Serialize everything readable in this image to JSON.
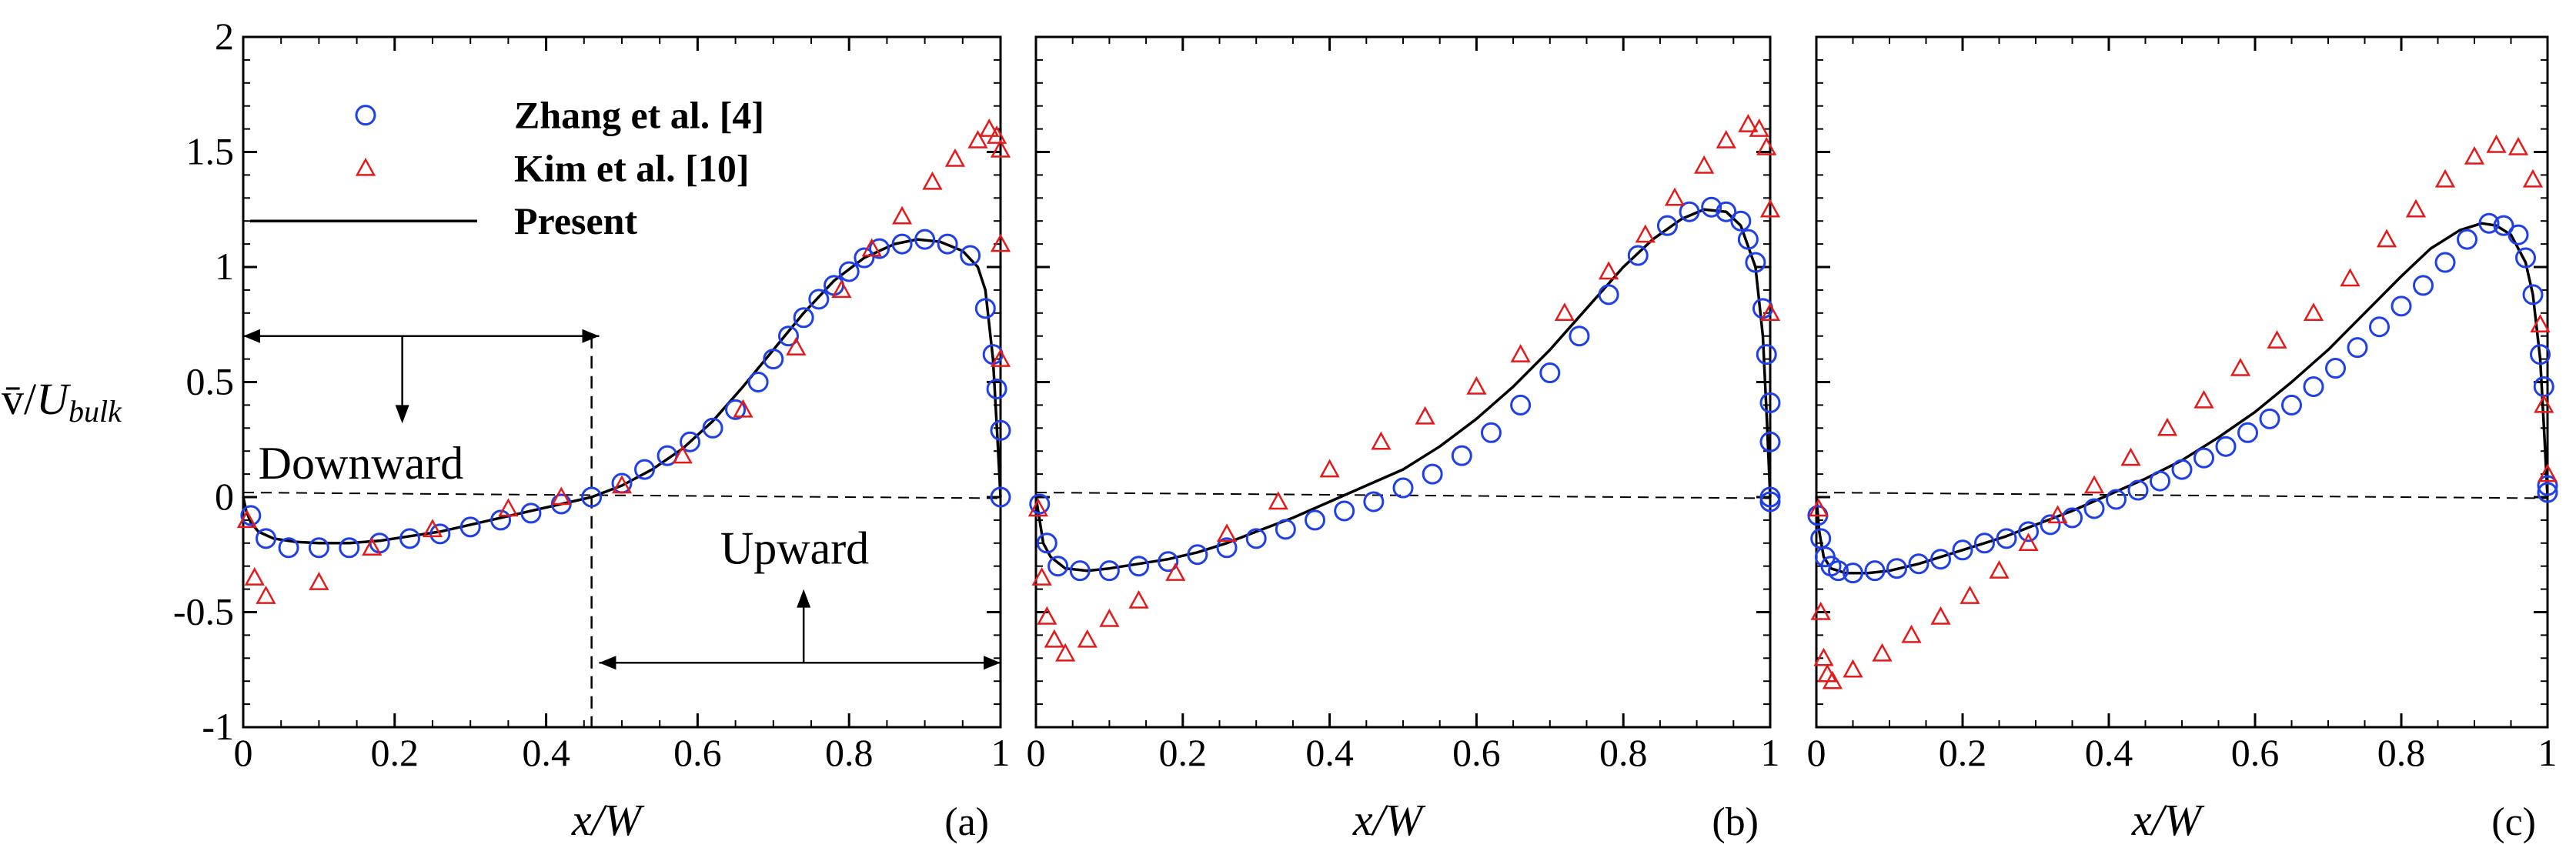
{
  "chart_data": {
    "type": "line",
    "layout": "three panels side by side, shared y-axis on the left panel",
    "y_axis": {
      "label_prefix": "v̄/",
      "label_main": "U",
      "label_sub": "bulk",
      "range": [
        -1,
        2
      ],
      "ticks": [
        "-1",
        "-0.5",
        "0",
        "0.5",
        "1",
        "1.5",
        "2"
      ]
    },
    "x_axis": {
      "label": "x/W",
      "range": [
        0,
        1
      ],
      "ticks": [
        "0",
        "0.2",
        "0.4",
        "0.6",
        "0.8",
        "1"
      ]
    },
    "legend": {
      "placement": "top-left of panel (a)",
      "entries": [
        {
          "name": "Zhang et al. [4]",
          "marker": "circle",
          "color": "#1f3fe8"
        },
        {
          "name": "Kim et al. [10]",
          "marker": "triangle",
          "color": "#e41a1a"
        },
        {
          "name": "Present",
          "marker": "line",
          "color": "#000000"
        }
      ]
    },
    "panels": [
      {
        "label": "(a)",
        "annotations": {
          "downward": "Downward",
          "upward": "Upward",
          "divider_x": 0.46,
          "downward_span": [
            0.0,
            0.47
          ],
          "upward_span": [
            0.47,
            1.0
          ]
        },
        "series": [
          {
            "name": "Present",
            "x": [
              0,
              0.004,
              0.01,
              0.02,
              0.04,
              0.07,
              0.1,
              0.14,
              0.18,
              0.22,
              0.26,
              0.3,
              0.34,
              0.38,
              0.42,
              0.46,
              0.5,
              0.54,
              0.58,
              0.62,
              0.66,
              0.7,
              0.74,
              0.78,
              0.82,
              0.86,
              0.89,
              0.92,
              0.95,
              0.97,
              0.98,
              0.99,
              0.996,
              1.0
            ],
            "y": [
              0,
              -0.06,
              -0.11,
              -0.15,
              -0.18,
              -0.195,
              -0.2,
              -0.2,
              -0.19,
              -0.17,
              -0.15,
              -0.12,
              -0.09,
              -0.06,
              -0.03,
              0.0,
              0.05,
              0.12,
              0.21,
              0.33,
              0.48,
              0.64,
              0.8,
              0.94,
              1.04,
              1.1,
              1.12,
              1.11,
              1.07,
              1.0,
              0.9,
              0.6,
              0.25,
              0.0
            ]
          },
          {
            "name": "Zhang et al. [4]",
            "x": [
              0.01,
              0.03,
              0.06,
              0.1,
              0.14,
              0.18,
              0.22,
              0.26,
              0.3,
              0.34,
              0.38,
              0.42,
              0.46,
              0.5,
              0.53,
              0.56,
              0.59,
              0.62,
              0.65,
              0.68,
              0.7,
              0.72,
              0.74,
              0.76,
              0.78,
              0.8,
              0.82,
              0.84,
              0.87,
              0.9,
              0.93,
              0.96,
              0.98,
              0.99,
              0.995,
              1.0,
              1.0
            ],
            "y": [
              -0.08,
              -0.18,
              -0.22,
              -0.22,
              -0.22,
              -0.2,
              -0.18,
              -0.16,
              -0.13,
              -0.1,
              -0.07,
              -0.03,
              0.0,
              0.06,
              0.12,
              0.18,
              0.24,
              0.3,
              0.38,
              0.5,
              0.6,
              0.7,
              0.78,
              0.86,
              0.92,
              0.98,
              1.04,
              1.08,
              1.1,
              1.12,
              1.1,
              1.05,
              0.82,
              0.62,
              0.47,
              0.29,
              0.0
            ]
          },
          {
            "name": "Kim et al. [10]",
            "x": [
              0.005,
              0.015,
              0.03,
              0.1,
              0.17,
              0.25,
              0.35,
              0.42,
              0.5,
              0.58,
              0.66,
              0.73,
              0.79,
              0.83,
              0.87,
              0.91,
              0.94,
              0.97,
              0.985,
              0.995,
              1.0,
              1.0,
              1.0
            ],
            "y": [
              -0.1,
              -0.35,
              -0.43,
              -0.37,
              -0.22,
              -0.14,
              -0.05,
              0.0,
              0.05,
              0.18,
              0.38,
              0.65,
              0.9,
              1.08,
              1.22,
              1.37,
              1.47,
              1.55,
              1.6,
              1.57,
              1.51,
              1.1,
              0.6
            ]
          }
        ]
      },
      {
        "label": "(b)",
        "series": [
          {
            "name": "Present",
            "x": [
              0,
              0.005,
              0.01,
              0.02,
              0.04,
              0.07,
              0.1,
              0.14,
              0.18,
              0.22,
              0.26,
              0.3,
              0.35,
              0.4,
              0.45,
              0.5,
              0.55,
              0.6,
              0.65,
              0.7,
              0.75,
              0.8,
              0.84,
              0.88,
              0.91,
              0.94,
              0.96,
              0.98,
              0.99,
              0.996,
              1.0
            ],
            "y": [
              0,
              -0.1,
              -0.2,
              -0.26,
              -0.31,
              -0.32,
              -0.31,
              -0.29,
              -0.27,
              -0.24,
              -0.2,
              -0.15,
              -0.09,
              -0.02,
              0.05,
              0.12,
              0.22,
              0.34,
              0.48,
              0.64,
              0.82,
              1.0,
              1.12,
              1.21,
              1.25,
              1.24,
              1.18,
              1.0,
              0.7,
              0.3,
              0.0
            ]
          },
          {
            "name": "Zhang et al. [4]",
            "x": [
              0.005,
              0.015,
              0.03,
              0.06,
              0.1,
              0.14,
              0.18,
              0.22,
              0.26,
              0.3,
              0.34,
              0.38,
              0.42,
              0.46,
              0.5,
              0.54,
              0.58,
              0.62,
              0.66,
              0.7,
              0.74,
              0.78,
              0.82,
              0.86,
              0.89,
              0.92,
              0.94,
              0.96,
              0.97,
              0.98,
              0.99,
              0.995,
              1.0,
              1.0,
              1.0,
              1.0
            ],
            "y": [
              -0.03,
              -0.2,
              -0.3,
              -0.32,
              -0.32,
              -0.3,
              -0.28,
              -0.25,
              -0.22,
              -0.18,
              -0.14,
              -0.1,
              -0.06,
              -0.02,
              0.04,
              0.1,
              0.18,
              0.28,
              0.4,
              0.54,
              0.7,
              0.88,
              1.05,
              1.18,
              1.24,
              1.26,
              1.24,
              1.2,
              1.12,
              1.02,
              0.82,
              0.62,
              0.41,
              0.24,
              0.0,
              -0.02
            ]
          },
          {
            "name": "Kim et al. [10]",
            "x": [
              0.003,
              0.008,
              0.015,
              0.025,
              0.04,
              0.07,
              0.1,
              0.14,
              0.19,
              0.26,
              0.33,
              0.4,
              0.47,
              0.53,
              0.6,
              0.66,
              0.72,
              0.78,
              0.83,
              0.87,
              0.91,
              0.94,
              0.97,
              0.985,
              0.995,
              1.0,
              1.0
            ],
            "y": [
              -0.05,
              -0.35,
              -0.52,
              -0.62,
              -0.68,
              -0.62,
              -0.53,
              -0.45,
              -0.33,
              -0.16,
              -0.02,
              0.12,
              0.24,
              0.35,
              0.48,
              0.62,
              0.8,
              0.98,
              1.14,
              1.3,
              1.44,
              1.55,
              1.62,
              1.6,
              1.52,
              1.25,
              0.8
            ]
          }
        ]
      },
      {
        "label": "(c)",
        "series": [
          {
            "name": "Present",
            "x": [
              0,
              0.004,
              0.01,
              0.02,
              0.04,
              0.07,
              0.1,
              0.14,
              0.18,
              0.22,
              0.26,
              0.3,
              0.35,
              0.4,
              0.45,
              0.5,
              0.55,
              0.6,
              0.65,
              0.7,
              0.75,
              0.8,
              0.84,
              0.88,
              0.91,
              0.93,
              0.95,
              0.97,
              0.98,
              0.99,
              0.996,
              1.0
            ],
            "y": [
              0,
              -0.15,
              -0.26,
              -0.31,
              -0.33,
              -0.33,
              -0.32,
              -0.29,
              -0.25,
              -0.21,
              -0.17,
              -0.12,
              -0.06,
              0.01,
              0.08,
              0.16,
              0.26,
              0.37,
              0.5,
              0.64,
              0.8,
              0.96,
              1.08,
              1.16,
              1.19,
              1.18,
              1.14,
              1.02,
              0.88,
              0.6,
              0.25,
              0.0
            ]
          },
          {
            "name": "Zhang et al. [4]",
            "x": [
              0.002,
              0.006,
              0.012,
              0.02,
              0.03,
              0.05,
              0.08,
              0.11,
              0.14,
              0.17,
              0.2,
              0.23,
              0.26,
              0.29,
              0.32,
              0.35,
              0.38,
              0.41,
              0.44,
              0.47,
              0.5,
              0.53,
              0.56,
              0.59,
              0.62,
              0.65,
              0.68,
              0.71,
              0.74,
              0.77,
              0.8,
              0.83,
              0.86,
              0.89,
              0.92,
              0.94,
              0.96,
              0.97,
              0.98,
              0.99,
              0.995,
              1.0,
              1.0
            ],
            "y": [
              -0.08,
              -0.18,
              -0.26,
              -0.3,
              -0.32,
              -0.33,
              -0.32,
              -0.31,
              -0.29,
              -0.27,
              -0.23,
              -0.2,
              -0.18,
              -0.15,
              -0.12,
              -0.09,
              -0.05,
              -0.01,
              0.03,
              0.07,
              0.12,
              0.17,
              0.22,
              0.28,
              0.34,
              0.4,
              0.48,
              0.56,
              0.65,
              0.74,
              0.83,
              0.92,
              1.02,
              1.12,
              1.19,
              1.18,
              1.14,
              1.04,
              0.88,
              0.62,
              0.48,
              0.02,
              0.05
            ]
          },
          {
            "name": "Kim et al. [10]",
            "x": [
              0.003,
              0.006,
              0.01,
              0.015,
              0.022,
              0.05,
              0.09,
              0.13,
              0.17,
              0.21,
              0.25,
              0.29,
              0.33,
              0.38,
              0.43,
              0.48,
              0.53,
              0.58,
              0.63,
              0.68,
              0.73,
              0.78,
              0.82,
              0.86,
              0.9,
              0.93,
              0.96,
              0.98,
              0.99,
              0.995,
              1.0
            ],
            "y": [
              -0.05,
              -0.5,
              -0.7,
              -0.77,
              -0.8,
              -0.75,
              -0.68,
              -0.6,
              -0.52,
              -0.43,
              -0.32,
              -0.2,
              -0.08,
              0.05,
              0.17,
              0.3,
              0.42,
              0.56,
              0.68,
              0.8,
              0.95,
              1.12,
              1.25,
              1.38,
              1.48,
              1.53,
              1.52,
              1.38,
              0.75,
              0.4,
              0.1
            ]
          }
        ]
      }
    ]
  }
}
